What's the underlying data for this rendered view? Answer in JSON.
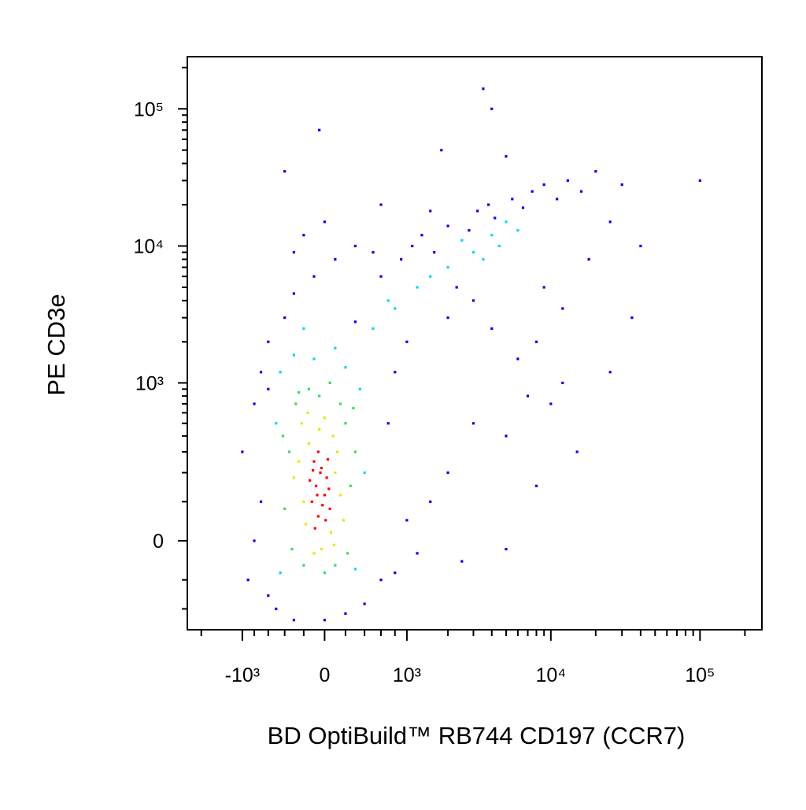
{
  "chart_data": {
    "type": "scatter",
    "x_label": "BD OptiBuild™ RB744 CD197 (CCR7)",
    "y_label": "PE CD3e",
    "scale": "biexponential",
    "xlim": [
      -2500,
      260000
    ],
    "ylim": [
      -300,
      240000
    ],
    "xticks": [
      {
        "value": -1000,
        "label": "-10³"
      },
      0,
      {
        "value": 1000,
        "label": "10³"
      },
      {
        "value": 10000,
        "label": "10⁴"
      },
      {
        "value": 100000,
        "label": "10⁵"
      }
    ],
    "yticks": [
      0,
      {
        "value": 1000,
        "label": "10³"
      },
      {
        "value": 10000,
        "label": "10⁴"
      },
      {
        "value": 100000,
        "label": "10⁵"
      }
    ],
    "xminorticks": [
      -2000,
      -800,
      -600,
      -400,
      -200,
      200,
      400,
      600,
      800,
      2000,
      3000,
      4000,
      5000,
      6000,
      7000,
      8000,
      9000,
      20000,
      30000,
      40000,
      50000,
      60000,
      70000,
      80000,
      90000,
      200000
    ],
    "yminorticks": [
      -200,
      -100,
      100,
      200,
      300,
      400,
      500,
      600,
      700,
      800,
      900,
      2000,
      3000,
      4000,
      5000,
      6000,
      7000,
      8000,
      9000,
      20000,
      30000,
      40000,
      50000,
      60000,
      70000,
      80000,
      90000,
      200000
    ],
    "series": [
      {
        "color": "#0000ff",
        "x": [
          -1000,
          -800,
          -700,
          -600,
          -500,
          -300,
          0,
          200,
          400,
          600,
          -700,
          700,
          800,
          -600,
          -400,
          -300,
          -100,
          100,
          300,
          0,
          -200,
          500,
          600,
          900,
          1100,
          1300,
          1600,
          2000,
          2300,
          2800,
          3200,
          3800,
          4200,
          5500,
          6500,
          7500,
          9000,
          11000,
          13000,
          16000,
          20000,
          25000,
          30000,
          40000,
          35000,
          100000,
          12000,
          8000,
          6000,
          4000,
          3000,
          5000,
          7000,
          10000,
          15000,
          2000,
          1500,
          1000,
          2500,
          1200,
          800,
          4000,
          1800,
          -50,
          -400,
          5000,
          3500,
          600,
          1500,
          -300,
          9000,
          18000,
          25000,
          12000,
          8000,
          5000,
          3000,
          2000,
          1000,
          300,
          -600,
          -800,
          -900
        ],
        "values": [
          300,
          700,
          1200,
          -150,
          -200,
          -250,
          -250,
          -220,
          -180,
          -100,
          100,
          500,
          1200,
          2000,
          3000,
          4500,
          6000,
          8000,
          10000,
          15000,
          12000,
          9000,
          6000,
          8000,
          10000,
          12000,
          9000,
          14000,
          5000,
          13000,
          18000,
          20000,
          16000,
          22000,
          19000,
          25000,
          28000,
          22000,
          30000,
          25000,
          35000,
          15000,
          28000,
          10000,
          3000,
          30000,
          3500,
          2000,
          1500,
          2500,
          500,
          400,
          800,
          700,
          300,
          200,
          100,
          50,
          -50,
          -30,
          -80,
          100000,
          50000,
          70000,
          35000,
          45000,
          140000,
          20000,
          18000,
          9000,
          5000,
          8000,
          1200,
          1000,
          150,
          -20,
          4000,
          3000,
          2000,
          2800,
          900,
          0,
          -100
        ]
      },
      {
        "color": "#00d8ff",
        "x": [
          -450,
          -100,
          100,
          350,
          -500,
          400,
          -450,
          300,
          200,
          -300,
          500,
          800,
          1200,
          2000,
          3000,
          4000,
          5000,
          2500,
          1500,
          6000,
          700,
          -200,
          3500,
          4500
        ],
        "values": [
          1200,
          1500,
          1800,
          900,
          500,
          200,
          -80,
          -70,
          1300,
          1600,
          2500,
          3500,
          5000,
          7000,
          9000,
          12000,
          15000,
          11000,
          6000,
          13000,
          4000,
          2500,
          8000,
          10000
        ]
      },
      {
        "color": "#30e060",
        "x": [
          -350,
          -280,
          200,
          250,
          -400,
          -50,
          150,
          300,
          -200,
          100,
          -320,
          220,
          -150,
          50,
          -420,
          280,
          0,
          -250
        ],
        "values": [
          300,
          700,
          500,
          150,
          80,
          800,
          700,
          300,
          -60,
          -60,
          -20,
          -30,
          900,
          1000,
          400,
          650,
          -80,
          850
        ]
      },
      {
        "color": "#e8e800",
        "x": [
          -200,
          -150,
          100,
          80,
          -250,
          -180,
          150,
          -50,
          60,
          -220,
          120,
          -30,
          -160,
          180,
          0,
          -300,
          90,
          -100
        ],
        "values": [
          100,
          350,
          200,
          400,
          250,
          40,
          120,
          450,
          20,
          500,
          300,
          -20,
          600,
          50,
          550,
          180,
          -10,
          -30
        ]
      },
      {
        "color": "#ff0000",
        "x": [
          -80,
          -40,
          0,
          -120,
          -60,
          20,
          -100,
          -20,
          40,
          -140,
          -60,
          10,
          -90,
          30,
          -30,
          -110,
          50,
          -70
        ],
        "values": [
          150,
          200,
          120,
          100,
          60,
          180,
          250,
          90,
          140,
          170,
          300,
          50,
          30,
          260,
          220,
          210,
          80,
          120
        ]
      }
    ]
  }
}
